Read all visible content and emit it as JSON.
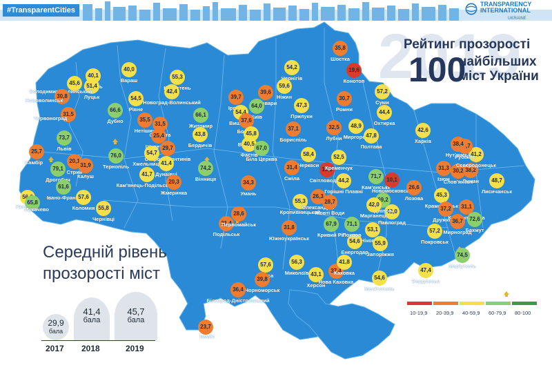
{
  "header": {
    "hashtag": "#TransparentCities",
    "logo_line1": "TRANSPARENCY",
    "logo_line2": "INTERNATIONAL",
    "logo_sub": "UKRAINE"
  },
  "title": {
    "background_year": "2019",
    "line1": "Рейтинг прозорості",
    "number": "100",
    "line2": "найбільших",
    "line3": "міст України"
  },
  "average": {
    "title_line1": "Середній рівень",
    "title_line2": "прозорості міст",
    "entries": [
      {
        "year": "2017",
        "value": "29,9",
        "unit": "бала"
      },
      {
        "year": "2018",
        "value": "41,4",
        "unit": "бала"
      },
      {
        "year": "2019",
        "value": "45,7",
        "unit": "бала"
      }
    ]
  },
  "legend": [
    {
      "label": "10-19,9",
      "color": "#d93a2b"
    },
    {
      "label": "20-39,9",
      "color": "#ee7d31"
    },
    {
      "label": "40-59,9",
      "color": "#f4e04a"
    },
    {
      "label": "60-79,9",
      "color": "#8ccf6c"
    },
    {
      "label": "80-100",
      "color": "#3a9a4c"
    }
  ],
  "colors": {
    "map_fill": "#2a8ad6",
    "sea": "#ffffff",
    "gold": "#e3b43a"
  },
  "cities": [
    {
      "name": "Ковель",
      "value": "40,1"
    },
    {
      "name": "Луцьк",
      "value": "51,4"
    },
    {
      "name": "Володимир-Волинський",
      "value": "45,6"
    },
    {
      "name": "Нововолинськ",
      "value": "30,8"
    },
    {
      "name": "Червоноград",
      "value": "31,5"
    },
    {
      "name": "Вараш",
      "value": "40,0"
    },
    {
      "name": "Рівне",
      "value": "54,5"
    },
    {
      "name": "Дубно",
      "value": "66,6"
    },
    {
      "name": "Коростень",
      "value": "55,3"
    },
    {
      "name": "Новоград-Волинський",
      "value": "42,4"
    },
    {
      "name": "Житомир",
      "value": "66,1"
    },
    {
      "name": "Бердичів",
      "value": "43,8"
    },
    {
      "name": "Нетішин",
      "value": "35,5"
    },
    {
      "name": "Славута",
      "value": "31,5"
    },
    {
      "name": "Шепетівка",
      "value": "25,4"
    },
    {
      "name": "Старокостянтинів",
      "value": "29,7"
    },
    {
      "name": "Хмельницький",
      "value": "54,7"
    },
    {
      "name": "Тернопіль",
      "value": "76,0"
    },
    {
      "name": "Самбір",
      "value": "25,7"
    },
    {
      "name": "Львів",
      "value": "73,7"
    },
    {
      "name": "Дрогобич",
      "value": "79,1"
    },
    {
      "name": "Стрий",
      "value": "20,1"
    },
    {
      "name": "Калуш",
      "value": "31,9"
    },
    {
      "name": "Ужгород",
      "value": "56,6"
    },
    {
      "name": "Мукачево",
      "value": "65,8"
    },
    {
      "name": "Івано-Франківськ",
      "value": "61,6"
    },
    {
      "name": "Коломия",
      "value": "57,6"
    },
    {
      "name": "Чернівці",
      "value": "55,8"
    },
    {
      "name": "Кам'янець-Подільський",
      "value": "41,7"
    },
    {
      "name": "Дунаївці",
      "value": "41,4"
    },
    {
      "name": "Вінниця",
      "value": "74,2"
    },
    {
      "name": "Жмеринка",
      "value": "20,3"
    },
    {
      "name": "Ірпінь",
      "value": "39,7"
    },
    {
      "name": "Бровари",
      "value": "39,6"
    },
    {
      "name": "Вишневе",
      "value": "54,4"
    },
    {
      "name": "Київ",
      "value": "64,0"
    },
    {
      "name": "Боярка",
      "value": "37,6"
    },
    {
      "name": "Васильків",
      "value": "45,8"
    },
    {
      "name": "Фастів",
      "value": "40,5"
    },
    {
      "name": "Біла Церква",
      "value": "67,0"
    },
    {
      "name": "Умань",
      "value": "34,3"
    },
    {
      "name": "Чернігів",
      "value": "54,2"
    },
    {
      "name": "Ніжин",
      "value": "59,6"
    },
    {
      "name": "Прилуки",
      "value": "47,3"
    },
    {
      "name": "Бориспіль",
      "value": "37,1"
    },
    {
      "name": "Шостка",
      "value": "35,8"
    },
    {
      "name": "Конотоп",
      "value": "19,6"
    },
    {
      "name": "Ромни",
      "value": "30,7"
    },
    {
      "name": "Суми",
      "value": "57,2"
    },
    {
      "name": "Охтирка",
      "value": "44,4"
    },
    {
      "name": "Лубни",
      "value": "32,5"
    },
    {
      "name": "Миргород",
      "value": "48,9"
    },
    {
      "name": "Полтава",
      "value": "47,8"
    },
    {
      "name": "Черкаси",
      "value": "58,4"
    },
    {
      "name": "Сміла",
      "value": "31,4"
    },
    {
      "name": "Світловодськ",
      "value": "19,9"
    },
    {
      "name": "Кременчук",
      "value": "52,5"
    },
    {
      "name": "Горішні Плавні",
      "value": "44,2"
    },
    {
      "name": "Кам'янське",
      "value": "71,7"
    },
    {
      "name": "Харків",
      "value": "42,6"
    },
    {
      "name": "Ізюм",
      "value": "31,3"
    },
    {
      "name": "Новомосковськ",
      "value": "10,1"
    },
    {
      "name": "Лозова",
      "value": "26,6"
    },
    {
      "name": "Краматорськ",
      "value": "45,3"
    },
    {
      "name": "Слов'янськ",
      "value": "30,2"
    },
    {
      "name": "Лиман",
      "value": "38,2"
    },
    {
      "name": "Сєвєродонецьк",
      "value": "41,2"
    },
    {
      "name": "Рубіжне",
      "value": "39,7"
    },
    {
      "name": "Лисичанськ",
      "value": "48,7"
    },
    {
      "name": "Нут'янськ",
      "value": "38,4"
    },
    {
      "name": "Дружківка",
      "value": "37,2"
    },
    {
      "name": "Костянтинівка",
      "value": "31,1"
    },
    {
      "name": "Бахмут",
      "value": "72,6"
    },
    {
      "name": "Мирноград",
      "value": "36,7"
    },
    {
      "name": "Покровськ",
      "value": "57,2"
    },
    {
      "name": "Павлоград",
      "value": "42,0"
    },
    {
      "name": "Дніпро",
      "value": "69,2"
    },
    {
      "name": "Марганець",
      "value": "42,0"
    },
    {
      "name": "Нікополь",
      "value": "53,1"
    },
    {
      "name": "Енергодар",
      "value": "54,6"
    },
    {
      "name": "Запоріжжя",
      "value": "55,9"
    },
    {
      "name": "Мелітополь",
      "value": "54,6"
    },
    {
      "name": "Бердянськ",
      "value": "47,4"
    },
    {
      "name": "Маріуполь",
      "value": "74,5"
    },
    {
      "name": "Кропивницький",
      "value": "55,3"
    },
    {
      "name": "Олександрія",
      "value": "26,3"
    },
    {
      "name": "Жовті Води",
      "value": "28,7"
    },
    {
      "name": "Кривий Ріг",
      "value": "67,9"
    },
    {
      "name": "Покров",
      "value": "71,1"
    },
    {
      "name": "Подільськ",
      "value": "21,4"
    },
    {
      "name": "Первомайськ",
      "value": "28,6"
    },
    {
      "name": "Южноукраїнськ",
      "value": "31,8"
    },
    {
      "name": "Миколаїв",
      "value": "56,3"
    },
    {
      "name": "Одеса",
      "value": "57,6"
    },
    {
      "name": "Чорноморськ",
      "value": "39,8"
    },
    {
      "name": "Білгород-Дністровський",
      "value": "36,4"
    },
    {
      "name": "Ізмаїл",
      "value": "23,7"
    },
    {
      "name": "Херсон",
      "value": "43,1"
    },
    {
      "name": "Нова Каховка",
      "value": "37,4"
    },
    {
      "name": "Каховка",
      "value": "41,8"
    }
  ]
}
